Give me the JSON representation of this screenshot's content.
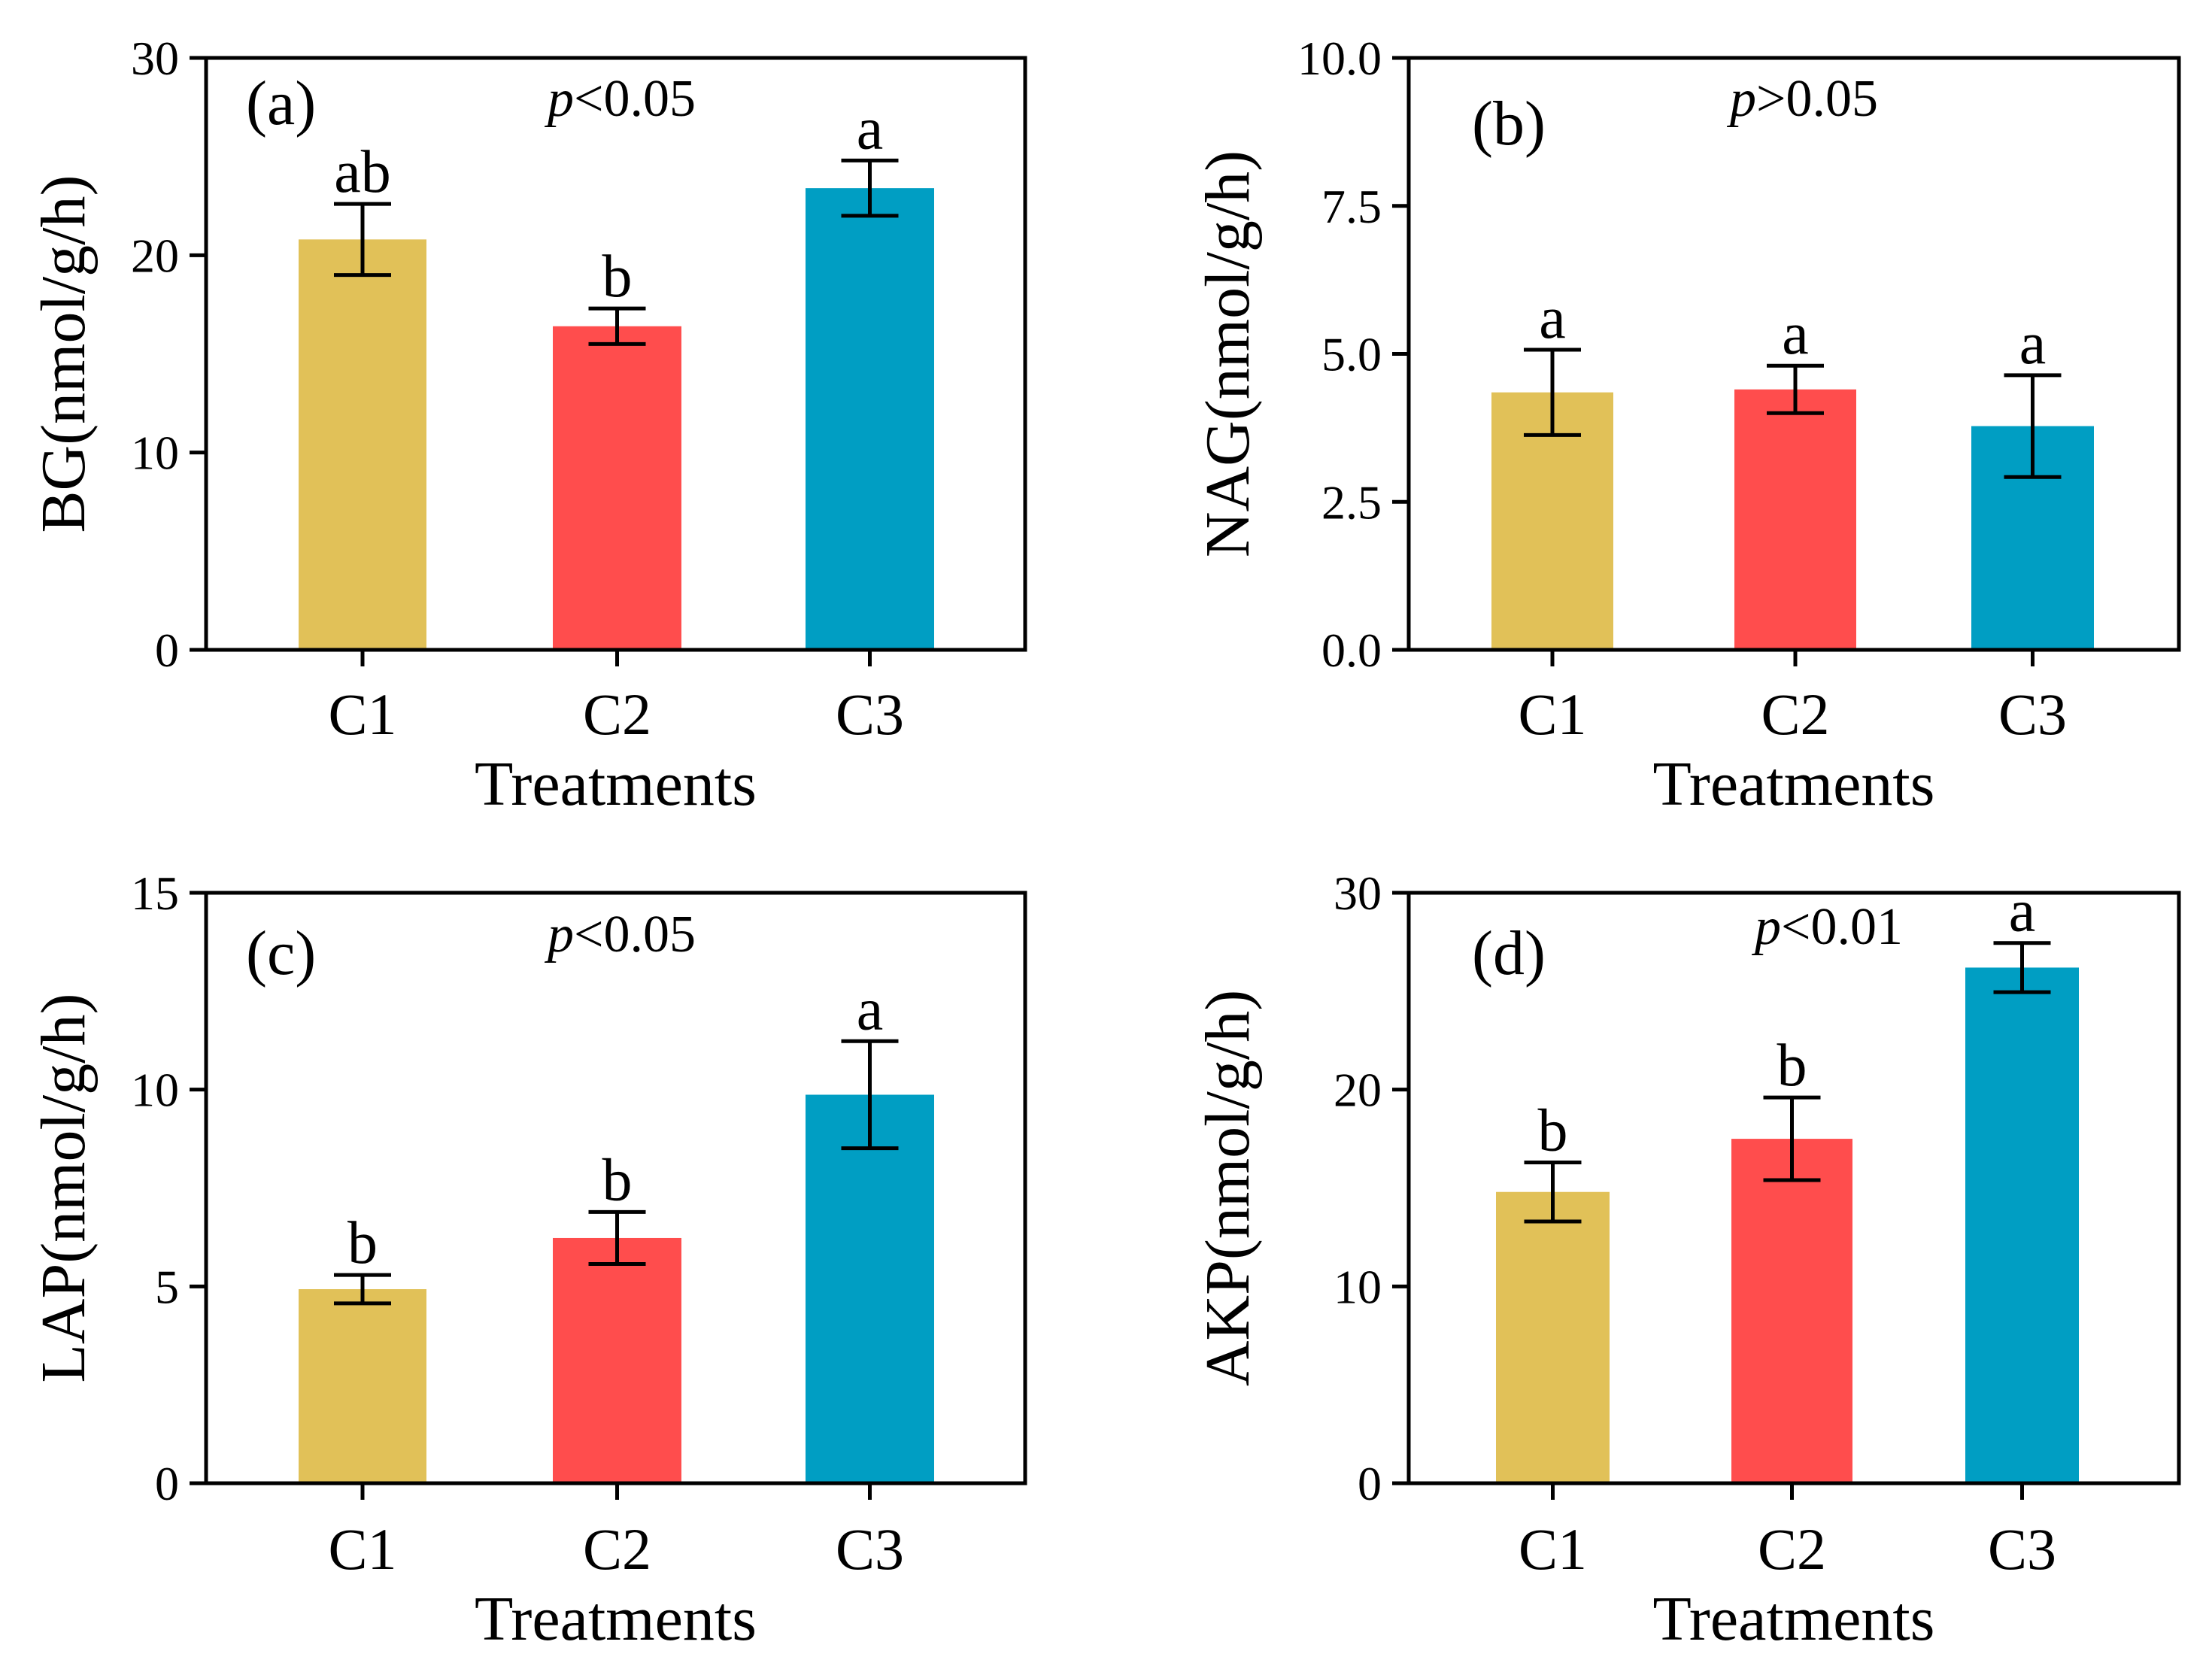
{
  "chart_data": [
    {
      "type": "bar",
      "panel_label": "(a)",
      "annotation": {
        "italic": "p",
        "rest": "<0.05"
      },
      "categories": [
        "C1",
        "C2",
        "C3"
      ],
      "values": [
        20.8,
        16.4,
        23.4
      ],
      "errors": [
        1.8,
        0.9,
        1.4
      ],
      "significance": [
        "ab",
        "b",
        "a"
      ],
      "xlabel": "Treatments",
      "ylabel": "BG(nmol/g/h)",
      "ylim": [
        0,
        30
      ],
      "yticks": [
        0,
        10,
        20,
        30
      ],
      "ytick_labels": [
        "0",
        "10",
        "20",
        "30"
      ]
    },
    {
      "type": "bar",
      "panel_label": "(b)",
      "annotation": {
        "italic": "p",
        "rest": ">0.05"
      },
      "categories": [
        "C1",
        "C2",
        "C3"
      ],
      "values": [
        4.35,
        4.4,
        3.78
      ],
      "errors": [
        0.72,
        0.4,
        0.86
      ],
      "significance": [
        "a",
        "a",
        "a"
      ],
      "xlabel": "Treatments",
      "ylabel": "NAG(nmol/g/h)",
      "ylim": [
        0,
        10
      ],
      "yticks": [
        0,
        2.5,
        5,
        7.5,
        10
      ],
      "ytick_labels": [
        "0.0",
        "2.5",
        "5.0",
        "7.5",
        "10.0"
      ]
    },
    {
      "type": "bar",
      "panel_label": "(c)",
      "annotation": {
        "italic": "p",
        "rest": "<0.05"
      },
      "categories": [
        "C1",
        "C2",
        "C3"
      ],
      "values": [
        4.93,
        6.23,
        9.87
      ],
      "errors": [
        0.36,
        0.66,
        1.36
      ],
      "significance": [
        "b",
        "b",
        "a"
      ],
      "xlabel": "Treatments",
      "ylabel": "LAP(nmol/g/h)",
      "ylim": [
        0,
        15
      ],
      "yticks": [
        0,
        5,
        10,
        15
      ],
      "ytick_labels": [
        "0",
        "5",
        "10",
        "15"
      ]
    },
    {
      "type": "bar",
      "panel_label": "(d)",
      "annotation": {
        "italic": "p",
        "rest": "<0.01"
      },
      "categories": [
        "C1",
        "C2",
        "C3"
      ],
      "values": [
        14.8,
        17.5,
        26.2
      ],
      "errors": [
        1.5,
        2.1,
        1.25
      ],
      "significance": [
        "b",
        "b",
        "a"
      ],
      "xlabel": "Treatments",
      "ylabel": "AKP(nmol/g/h)",
      "ylim": [
        0,
        30
      ],
      "yticks": [
        0,
        10,
        20,
        30
      ],
      "ytick_labels": [
        "0",
        "10",
        "20",
        "30"
      ]
    }
  ],
  "colors": {
    "C1": "#E1C158",
    "C2": "#FF4D4D",
    "C3": "#009EC3"
  }
}
